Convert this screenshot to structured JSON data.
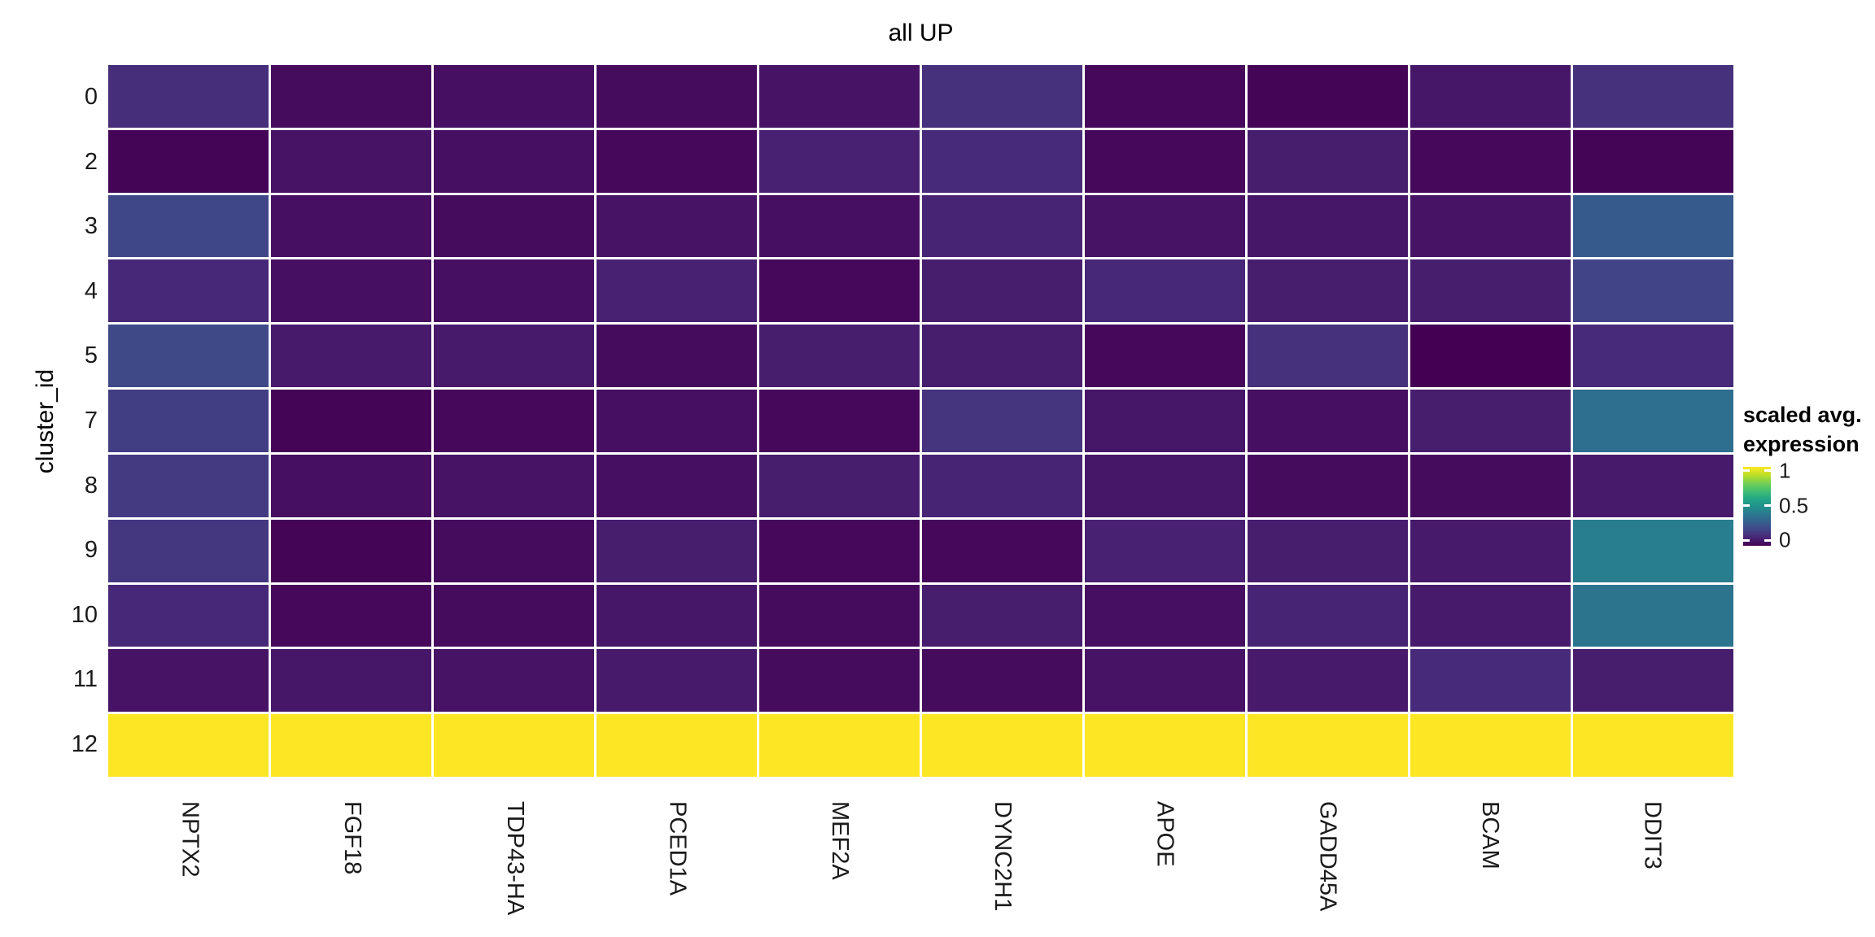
{
  "chart_data": {
    "type": "heatmap",
    "title": "all UP",
    "xlabel": "",
    "ylabel": "cluster_id",
    "x_categories": [
      "NPTX2",
      "FGF18",
      "TDP43-HA",
      "PCED1A",
      "MEF2A",
      "DYNC2H1",
      "APOE",
      "GADD45A",
      "BCAM",
      "DDIT3"
    ],
    "y_categories": [
      "0",
      "2",
      "3",
      "4",
      "5",
      "7",
      "8",
      "9",
      "10",
      "11",
      "12"
    ],
    "values": [
      [
        0.13,
        0.03,
        0.04,
        0.03,
        0.05,
        0.14,
        0.02,
        0.01,
        0.06,
        0.14
      ],
      [
        0.01,
        0.05,
        0.04,
        0.02,
        0.09,
        0.12,
        0.02,
        0.08,
        0.02,
        0.01
      ],
      [
        0.21,
        0.04,
        0.03,
        0.05,
        0.04,
        0.1,
        0.05,
        0.06,
        0.05,
        0.28
      ],
      [
        0.11,
        0.04,
        0.04,
        0.09,
        0.02,
        0.08,
        0.11,
        0.08,
        0.08,
        0.2
      ],
      [
        0.22,
        0.07,
        0.07,
        0.03,
        0.08,
        0.08,
        0.02,
        0.14,
        0.0,
        0.12
      ],
      [
        0.18,
        0.01,
        0.02,
        0.04,
        0.02,
        0.15,
        0.06,
        0.04,
        0.08,
        0.36
      ],
      [
        0.17,
        0.04,
        0.05,
        0.04,
        0.08,
        0.1,
        0.06,
        0.03,
        0.03,
        0.07
      ],
      [
        0.16,
        0.01,
        0.03,
        0.08,
        0.02,
        0.02,
        0.09,
        0.08,
        0.07,
        0.42
      ],
      [
        0.11,
        0.02,
        0.03,
        0.06,
        0.03,
        0.08,
        0.04,
        0.1,
        0.07,
        0.38
      ],
      [
        0.05,
        0.06,
        0.05,
        0.07,
        0.03,
        0.03,
        0.05,
        0.07,
        0.12,
        0.08
      ],
      [
        1.0,
        1.0,
        1.0,
        1.0,
        1.0,
        1.0,
        1.0,
        1.0,
        1.0,
        1.0
      ]
    ],
    "value_range": [
      0,
      1
    ],
    "colormap": "viridis",
    "grid": "white gaps between tiles",
    "legend_position": "right",
    "legend": {
      "title_line1": "scaled avg.",
      "title_line2": "expression",
      "tick_labels": [
        "1",
        "0.5",
        "0"
      ],
      "tick_values": [
        1,
        0.5,
        0
      ]
    }
  },
  "colors": {
    "background": "#ffffff",
    "tile_gap": "#ffffff",
    "text": "#000000",
    "axis_text": "#1a1a1a",
    "viridis_stops": [
      [
        0.0,
        "#440154"
      ],
      [
        0.1,
        "#482475"
      ],
      [
        0.2,
        "#414487"
      ],
      [
        0.3,
        "#355f8d"
      ],
      [
        0.4,
        "#2a788e"
      ],
      [
        0.5,
        "#21918c"
      ],
      [
        0.6,
        "#22a884"
      ],
      [
        0.7,
        "#44bf70"
      ],
      [
        0.8,
        "#7ad151"
      ],
      [
        0.9,
        "#bddf26"
      ],
      [
        1.0,
        "#fde725"
      ]
    ]
  }
}
